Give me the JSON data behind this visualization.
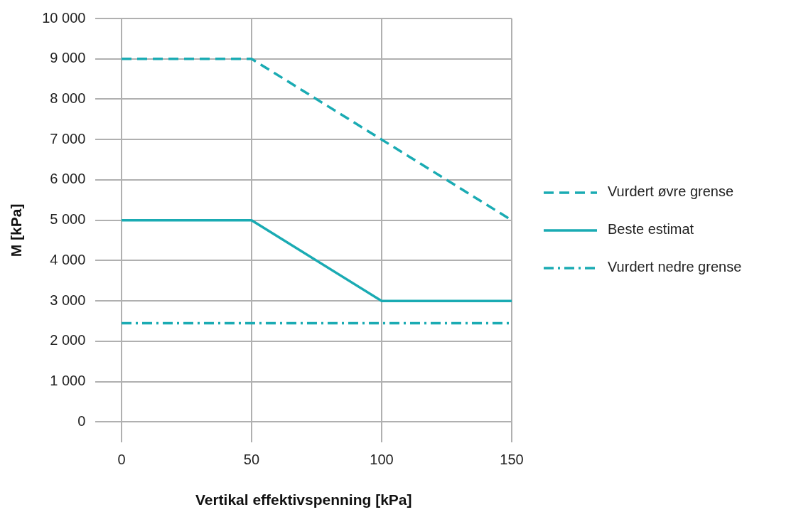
{
  "chart_data": {
    "type": "line",
    "xlabel": "Vertikal effektivspenning [kPa]",
    "ylabel": "M [kPa]",
    "xlim": [
      -10,
      150
    ],
    "xticks": [
      0,
      50,
      100,
      150
    ],
    "ylim": [
      -500,
      10000
    ],
    "yticks": [
      {
        "value": 0,
        "label": "0"
      },
      {
        "value": 1000,
        "label": "1 000"
      },
      {
        "value": 2000,
        "label": "2 000"
      },
      {
        "value": 3000,
        "label": "3 000"
      },
      {
        "value": 4000,
        "label": "4 000"
      },
      {
        "value": 5000,
        "label": "5 000"
      },
      {
        "value": 6000,
        "label": "6 000"
      },
      {
        "value": 7000,
        "label": "7 000"
      },
      {
        "value": 8000,
        "label": "8 000"
      },
      {
        "value": 9000,
        "label": "9 000"
      },
      {
        "value": 10000,
        "label": "10 000"
      }
    ],
    "grid": true,
    "legend": "right",
    "marker": "none",
    "series": [
      {
        "name": "Vurdert øvre grense",
        "color": "#1aabb3",
        "line_style": "dashed",
        "x": [
          0,
          50,
          150
        ],
        "values": [
          9000,
          9000,
          5000
        ]
      },
      {
        "name": "Beste estimat",
        "color": "#1aabb3",
        "line_style": "solid",
        "x": [
          0,
          50,
          100,
          150
        ],
        "values": [
          5000,
          5000,
          3000,
          3000
        ]
      },
      {
        "name": "Vurdert nedre grense",
        "color": "#1aabb3",
        "line_style": "dashdot",
        "x": [
          0,
          150
        ],
        "values": [
          2450,
          2450
        ]
      }
    ]
  }
}
